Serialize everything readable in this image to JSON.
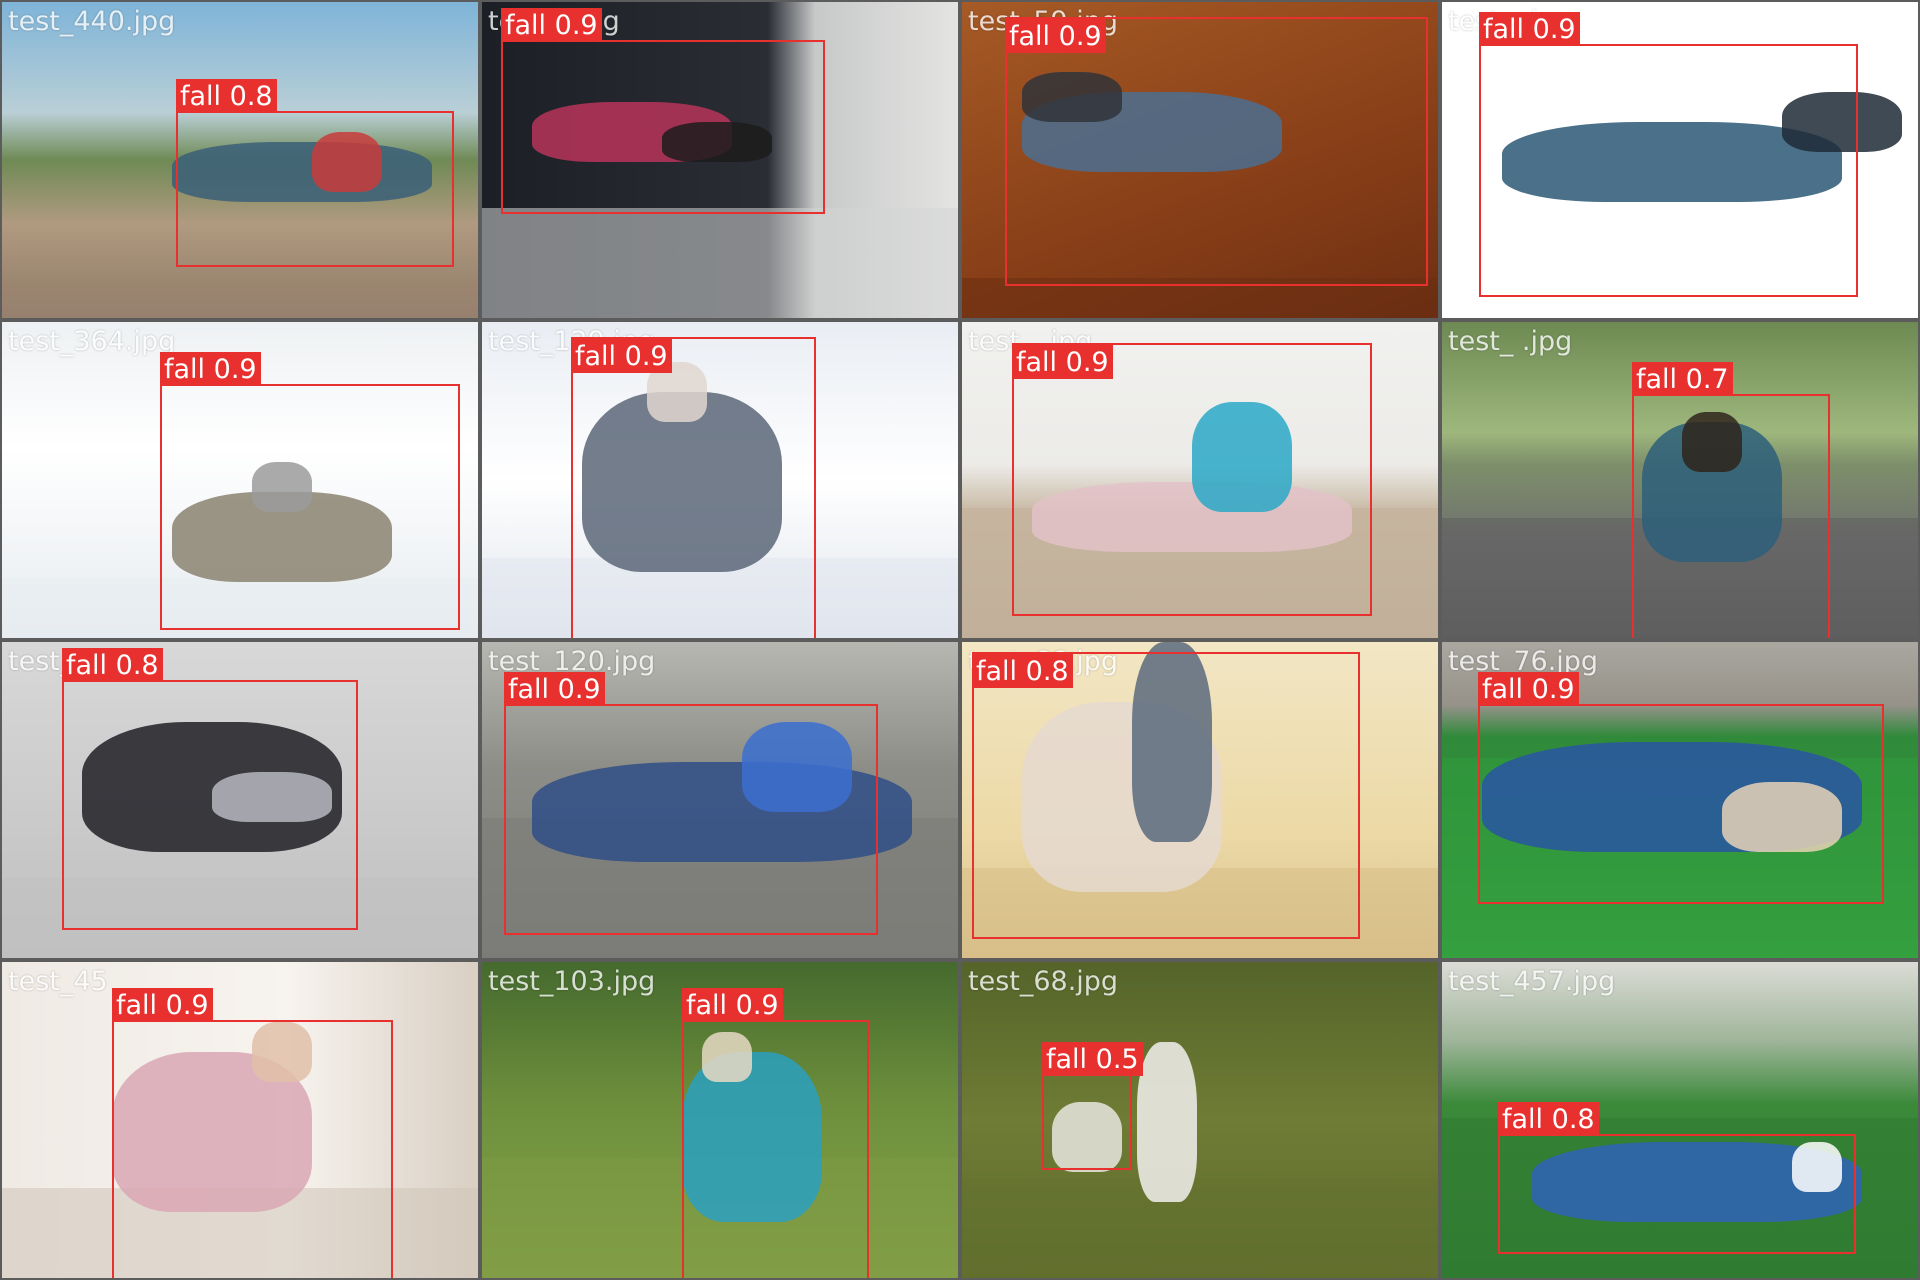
{
  "grid": {
    "columns": 4,
    "rows": 4
  },
  "colors": {
    "box": "#e8312f",
    "label_text": "#ffffff",
    "separator": "#7f7f7f"
  },
  "tiles": [
    {
      "caption": "test_440.jpg",
      "scene": "cyclist fallen next to bicycle on a road",
      "detections": [
        {
          "label": "fall 0.8"
        }
      ]
    },
    {
      "caption": "test_    l.jpg",
      "scene": "child fallen on an indoor floor",
      "detections": [
        {
          "label": "fall 0.9"
        }
      ]
    },
    {
      "caption": "test_59.jpg",
      "scene": "woman fallen on wooden stairs",
      "detections": [
        {
          "label": "fall 0.9"
        }
      ]
    },
    {
      "caption": "test_   .jpg",
      "scene": "man falling mid-air on white background",
      "detections": [
        {
          "label": "fall 0.9"
        }
      ]
    },
    {
      "caption": "test_364.jpg",
      "scene": "child fallen in snow",
      "detections": [
        {
          "label": "fall 0.9"
        }
      ]
    },
    {
      "caption": "test_129.jpg",
      "scene": "elderly woman fallen in snow",
      "detections": [
        {
          "label": "fall 0.9"
        }
      ]
    },
    {
      "caption": "test_   .jpg",
      "scene": "girl in roller skates sitting on floor holding knee",
      "detections": [
        {
          "label": "fall 0.9"
        }
      ]
    },
    {
      "caption": "test_   .jpg",
      "scene": "woman on hands and knees in park path",
      "detections": [
        {
          "label": "fall 0.7"
        }
      ]
    },
    {
      "caption": "test_   g",
      "scene": "woman falling off skateboard",
      "detections": [
        {
          "label": "fall 0.8"
        }
      ]
    },
    {
      "caption": "test_120.jpg",
      "scene": "boy in inline skates fallen on asphalt",
      "detections": [
        {
          "label": "fall 0.9"
        }
      ]
    },
    {
      "caption": "test_66.jpg",
      "scene": "girl on roller skates sitting on rink floor",
      "detections": [
        {
          "label": "fall 0.8"
        }
      ]
    },
    {
      "caption": "test_76.jpg",
      "scene": "soccer player lying on green field",
      "detections": [
        {
          "label": "fall 0.9"
        }
      ]
    },
    {
      "caption": "test_45",
      "scene": "elderly woman fallen on bedroom floor",
      "detections": [
        {
          "label": "fall 0.9"
        }
      ]
    },
    {
      "caption": "test_103.jpg",
      "scene": "elderly man fallen on grass with cane",
      "detections": [
        {
          "label": "fall 0.9"
        }
      ]
    },
    {
      "caption": "test_68.jpg",
      "scene": "small child fallen on grass",
      "detections": [
        {
          "label": "fall 0.5"
        }
      ]
    },
    {
      "caption": "test_457.jpg",
      "scene": "boy lying on grass near soccer goal",
      "detections": [
        {
          "label": "fall 0.8"
        }
      ]
    }
  ]
}
